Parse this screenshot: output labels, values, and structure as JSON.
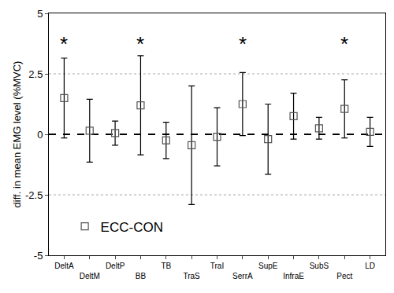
{
  "chart_data": {
    "type": "scatter",
    "y_label": "diff. in mean EMG level (%MVC)",
    "categories": [
      "DeltA",
      "DeltM",
      "DeltP",
      "BB",
      "TB",
      "TraS",
      "TraI",
      "SerrA",
      "SupE",
      "InfraE",
      "SubS",
      "Pect",
      "LD"
    ],
    "series": [
      {
        "name": "ECC-CON",
        "color": "#555555",
        "marker": "square-open",
        "values": [
          1.5,
          0.15,
          0.05,
          1.2,
          -0.25,
          -0.45,
          -0.1,
          1.25,
          -0.2,
          0.75,
          0.25,
          1.05,
          0.1
        ],
        "error": [
          1.65,
          1.3,
          0.5,
          2.05,
          0.75,
          2.45,
          1.2,
          1.3,
          1.45,
          0.95,
          0.45,
          1.2,
          0.6
        ]
      }
    ],
    "annotations": [
      {
        "category": "DeltA",
        "text": "*"
      },
      {
        "category": "BB",
        "text": "*"
      },
      {
        "category": "SerrA",
        "text": "*"
      },
      {
        "category": "Pect",
        "text": "*"
      }
    ],
    "ylim": [
      -5,
      5
    ],
    "yticks": [
      -5,
      -2.5,
      0,
      2.5,
      5
    ],
    "grid": true,
    "legend": "lower left"
  }
}
